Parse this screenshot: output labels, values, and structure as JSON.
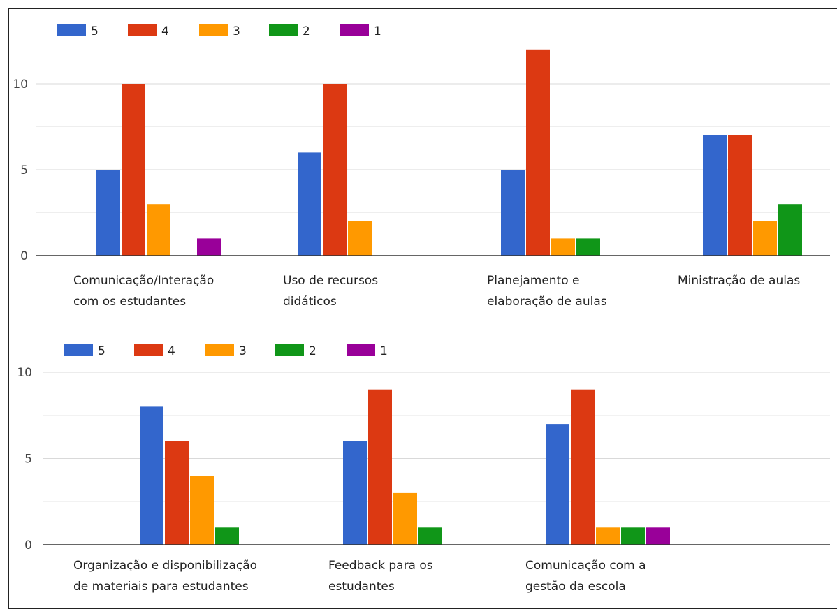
{
  "colors": {
    "5": "#3366cc",
    "4": "#dc3912",
    "3": "#ff9900",
    "2": "#109618",
    "1": "#990099",
    "grid": "#d9d9d9",
    "minor_grid": "#eeeeee",
    "baseline": "#333333"
  },
  "chart_data": [
    {
      "type": "bar",
      "legend": [
        "5",
        "4",
        "3",
        "2",
        "1"
      ],
      "categories": [
        [
          "Comunicação/Interação",
          "com os estudantes"
        ],
        [
          "Uso de recursos",
          "didáticos"
        ],
        [
          "Planejamento e",
          "elaboração de aulas"
        ],
        [
          "Ministração de aulas"
        ]
      ],
      "series": [
        {
          "name": "5",
          "values": [
            5,
            6,
            5,
            7
          ]
        },
        {
          "name": "4",
          "values": [
            10,
            10,
            12,
            7
          ]
        },
        {
          "name": "3",
          "values": [
            3,
            2,
            1,
            2
          ]
        },
        {
          "name": "2",
          "values": [
            0,
            0,
            1,
            3
          ]
        },
        {
          "name": "1",
          "values": [
            1,
            0,
            0,
            0
          ]
        }
      ],
      "yticks": [
        "0",
        "5",
        "10"
      ],
      "ylim": [
        0,
        12
      ],
      "grid": true,
      "legend_position": "top-left"
    },
    {
      "type": "bar",
      "legend": [
        "5",
        "4",
        "3",
        "2",
        "1"
      ],
      "categories": [
        [
          "Organização e disponibilização",
          "de materiais para estudantes"
        ],
        [
          "Feedback para os",
          "estudantes"
        ],
        [
          "Comunicação com a",
          "gestão da escola"
        ]
      ],
      "series": [
        {
          "name": "5",
          "values": [
            8,
            6,
            7
          ]
        },
        {
          "name": "4",
          "values": [
            6,
            9,
            9
          ]
        },
        {
          "name": "3",
          "values": [
            4,
            3,
            1
          ]
        },
        {
          "name": "2",
          "values": [
            1,
            1,
            1
          ]
        },
        {
          "name": "1",
          "values": [
            0,
            0,
            1
          ]
        }
      ],
      "yticks": [
        "0",
        "5",
        "10"
      ],
      "ylim": [
        0,
        10
      ],
      "grid": true,
      "legend_position": "top-left"
    }
  ]
}
